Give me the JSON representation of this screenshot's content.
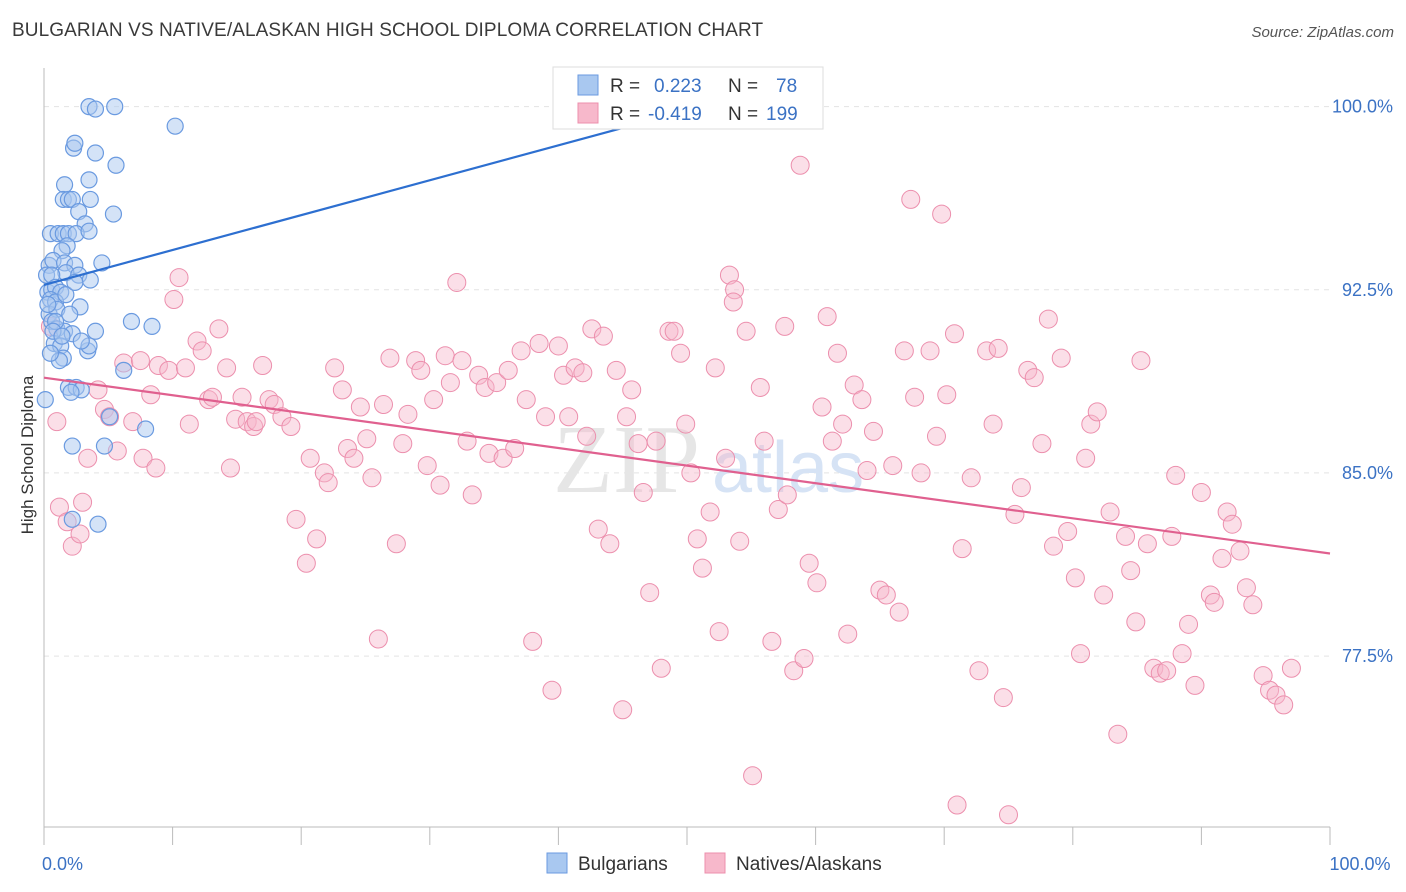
{
  "title": "BULGARIAN VS NATIVE/ALASKAN HIGH SCHOOL DIPLOMA CORRELATION CHART",
  "source": "Source: ZipAtlas.com",
  "watermark": {
    "zip": "ZIP",
    "atlas": "atlas"
  },
  "colors": {
    "blue_fill": "#a9c8f0",
    "blue_stroke": "#6a9ae0",
    "blue_line": "#2d6fd0",
    "pink_fill": "#f7b8cb",
    "pink_stroke": "#ec8fad",
    "pink_line": "#e0608f",
    "axis_text": "#3b72c4",
    "grid": "#e3e3e3"
  },
  "legend": {
    "rows": [
      {
        "r_label": "R =",
        "r_value": "0.223",
        "n_label": "N =",
        "n_value": "78"
      },
      {
        "r_label": "R =",
        "r_value": "-0.419",
        "n_label": "N =",
        "n_value": "199"
      }
    ]
  },
  "bottom_legend": [
    "Bulgarians",
    "Natives/Alaskans"
  ],
  "chart_data": {
    "type": "scatter",
    "title": "BULGARIAN VS NATIVE/ALASKAN HIGH SCHOOL DIPLOMA CORRELATION CHART",
    "xlabel": "",
    "ylabel": "High School Diploma",
    "xlim": [
      0,
      100
    ],
    "ylim": [
      70.5,
      101.5
    ],
    "x_ticks": [
      0,
      10,
      20,
      30,
      40,
      50,
      60,
      70,
      80,
      90,
      100
    ],
    "x_tick_labels_shown": {
      "0": "0.0%",
      "100": "100.0%"
    },
    "y_ticks": [
      77.5,
      85.0,
      92.5,
      100.0
    ],
    "y_tick_labels": [
      "77.5%",
      "85.0%",
      "92.5%",
      "100.0%"
    ],
    "grid": "horizontal dashed",
    "legend_position": "top-center",
    "series": [
      {
        "name": "Bulgarians",
        "color": "#a9c8f0",
        "r": 0.223,
        "n": 78,
        "trend": {
          "x": [
            0,
            59.5
          ],
          "y": [
            92.7,
            101.2
          ]
        },
        "points": [
          [
            3.5,
            100.0
          ],
          [
            5.5,
            100.0
          ],
          [
            4.0,
            99.9
          ],
          [
            10.2,
            99.2
          ],
          [
            2.3,
            98.3
          ],
          [
            2.4,
            98.5
          ],
          [
            4.0,
            98.1
          ],
          [
            5.6,
            97.6
          ],
          [
            3.5,
            97.0
          ],
          [
            1.6,
            96.8
          ],
          [
            1.5,
            96.2
          ],
          [
            1.9,
            96.2
          ],
          [
            2.2,
            96.2
          ],
          [
            3.6,
            96.2
          ],
          [
            2.7,
            95.7
          ],
          [
            5.4,
            95.6
          ],
          [
            3.2,
            95.2
          ],
          [
            0.5,
            94.8
          ],
          [
            1.1,
            94.8
          ],
          [
            1.5,
            94.8
          ],
          [
            1.9,
            94.8
          ],
          [
            2.5,
            94.8
          ],
          [
            3.5,
            94.9
          ],
          [
            1.8,
            94.3
          ],
          [
            1.4,
            94.1
          ],
          [
            0.4,
            93.5
          ],
          [
            0.7,
            93.7
          ],
          [
            1.6,
            93.6
          ],
          [
            2.4,
            93.5
          ],
          [
            4.5,
            93.6
          ],
          [
            1.7,
            93.2
          ],
          [
            0.2,
            93.1
          ],
          [
            0.6,
            93.1
          ],
          [
            2.7,
            93.1
          ],
          [
            3.6,
            92.9
          ],
          [
            0.3,
            92.4
          ],
          [
            0.6,
            92.5
          ],
          [
            0.9,
            92.6
          ],
          [
            1.3,
            92.4
          ],
          [
            0.5,
            92.1
          ],
          [
            0.9,
            92.0
          ],
          [
            0.4,
            91.5
          ],
          [
            1.0,
            91.7
          ],
          [
            2.8,
            91.8
          ],
          [
            2.0,
            91.5
          ],
          [
            0.6,
            91.2
          ],
          [
            1.0,
            90.9
          ],
          [
            6.8,
            91.2
          ],
          [
            8.4,
            91.0
          ],
          [
            1.6,
            90.8
          ],
          [
            2.2,
            90.7
          ],
          [
            4.0,
            90.8
          ],
          [
            0.8,
            90.3
          ],
          [
            1.3,
            90.2
          ],
          [
            3.4,
            90.0
          ],
          [
            3.5,
            90.2
          ],
          [
            1.5,
            89.7
          ],
          [
            6.2,
            89.2
          ],
          [
            1.9,
            88.5
          ],
          [
            2.5,
            88.5
          ],
          [
            2.9,
            88.4
          ],
          [
            0.1,
            88.0
          ],
          [
            5.1,
            87.3
          ],
          [
            7.9,
            86.8
          ],
          [
            2.2,
            86.1
          ],
          [
            4.7,
            86.1
          ],
          [
            2.2,
            83.1
          ],
          [
            4.2,
            82.9
          ],
          [
            0.9,
            91.2
          ],
          [
            1.7,
            92.3
          ],
          [
            2.4,
            92.8
          ],
          [
            0.3,
            91.9
          ],
          [
            1.2,
            89.6
          ],
          [
            0.7,
            90.8
          ],
          [
            2.1,
            88.3
          ],
          [
            0.5,
            89.9
          ],
          [
            1.4,
            90.6
          ],
          [
            2.9,
            90.4
          ]
        ]
      },
      {
        "name": "Natives/Alaskans",
        "color": "#f7b8cb",
        "r": -0.419,
        "n": 199,
        "trend": {
          "x": [
            0,
            100
          ],
          "y": [
            88.9,
            81.7
          ]
        },
        "points": [
          [
            0.5,
            91.0
          ],
          [
            1.0,
            87.1
          ],
          [
            1.2,
            83.6
          ],
          [
            1.8,
            83.0
          ],
          [
            2.2,
            82.0
          ],
          [
            2.8,
            82.5
          ],
          [
            3.0,
            83.8
          ],
          [
            3.4,
            85.6
          ],
          [
            4.2,
            88.4
          ],
          [
            4.7,
            87.6
          ],
          [
            5.1,
            87.3
          ],
          [
            5.7,
            85.9
          ],
          [
            6.2,
            89.5
          ],
          [
            6.9,
            87.1
          ],
          [
            7.5,
            89.6
          ],
          [
            7.7,
            85.6
          ],
          [
            8.3,
            88.2
          ],
          [
            8.7,
            85.2
          ],
          [
            8.9,
            89.4
          ],
          [
            9.7,
            89.2
          ],
          [
            10.1,
            92.1
          ],
          [
            10.5,
            93.0
          ],
          [
            11.0,
            89.3
          ],
          [
            11.3,
            87.0
          ],
          [
            11.9,
            90.4
          ],
          [
            12.3,
            90.0
          ],
          [
            12.8,
            88.0
          ],
          [
            13.1,
            88.1
          ],
          [
            13.6,
            90.9
          ],
          [
            14.2,
            89.3
          ],
          [
            14.5,
            85.2
          ],
          [
            14.9,
            87.2
          ],
          [
            15.4,
            88.1
          ],
          [
            15.8,
            87.1
          ],
          [
            16.3,
            86.9
          ],
          [
            16.5,
            87.1
          ],
          [
            17.0,
            89.4
          ],
          [
            17.5,
            88.0
          ],
          [
            17.9,
            87.8
          ],
          [
            18.5,
            87.3
          ],
          [
            19.2,
            86.9
          ],
          [
            19.6,
            83.1
          ],
          [
            20.4,
            81.3
          ],
          [
            20.7,
            85.6
          ],
          [
            21.2,
            82.3
          ],
          [
            21.8,
            85.0
          ],
          [
            22.1,
            84.6
          ],
          [
            22.6,
            89.3
          ],
          [
            23.2,
            88.4
          ],
          [
            23.6,
            86.0
          ],
          [
            24.1,
            85.6
          ],
          [
            24.6,
            87.7
          ],
          [
            25.1,
            86.4
          ],
          [
            25.5,
            84.8
          ],
          [
            26.0,
            78.2
          ],
          [
            26.4,
            87.8
          ],
          [
            26.9,
            89.7
          ],
          [
            27.4,
            82.1
          ],
          [
            27.9,
            86.2
          ],
          [
            28.3,
            87.4
          ],
          [
            28.9,
            89.6
          ],
          [
            29.3,
            89.2
          ],
          [
            29.8,
            85.3
          ],
          [
            30.3,
            88.0
          ],
          [
            30.8,
            84.5
          ],
          [
            31.2,
            89.8
          ],
          [
            31.6,
            88.7
          ],
          [
            32.1,
            92.8
          ],
          [
            32.5,
            89.6
          ],
          [
            32.9,
            86.3
          ],
          [
            33.3,
            84.1
          ],
          [
            33.8,
            89.0
          ],
          [
            34.3,
            88.5
          ],
          [
            34.6,
            85.8
          ],
          [
            35.2,
            88.7
          ],
          [
            35.7,
            85.6
          ],
          [
            36.1,
            89.2
          ],
          [
            36.6,
            86.0
          ],
          [
            37.1,
            90.0
          ],
          [
            37.5,
            88.0
          ],
          [
            38.0,
            78.1
          ],
          [
            38.5,
            90.3
          ],
          [
            39.0,
            87.3
          ],
          [
            39.5,
            76.1
          ],
          [
            40.0,
            90.2
          ],
          [
            40.4,
            89.0
          ],
          [
            40.8,
            87.3
          ],
          [
            41.3,
            89.3
          ],
          [
            41.9,
            89.1
          ],
          [
            42.2,
            86.5
          ],
          [
            42.6,
            90.9
          ],
          [
            43.1,
            82.7
          ],
          [
            43.5,
            90.6
          ],
          [
            44.0,
            82.1
          ],
          [
            44.5,
            89.2
          ],
          [
            45.0,
            75.3
          ],
          [
            45.3,
            87.3
          ],
          [
            45.7,
            88.4
          ],
          [
            46.2,
            86.2
          ],
          [
            46.6,
            84.2
          ],
          [
            47.1,
            80.1
          ],
          [
            47.6,
            86.3
          ],
          [
            48.0,
            77.0
          ],
          [
            48.6,
            90.8
          ],
          [
            49.0,
            90.8
          ],
          [
            49.5,
            89.9
          ],
          [
            49.9,
            87.0
          ],
          [
            50.3,
            85.0
          ],
          [
            50.8,
            82.3
          ],
          [
            51.2,
            81.1
          ],
          [
            51.8,
            83.4
          ],
          [
            52.2,
            89.3
          ],
          [
            52.5,
            78.5
          ],
          [
            53.0,
            85.6
          ],
          [
            53.3,
            93.1
          ],
          [
            53.7,
            92.5
          ],
          [
            54.1,
            82.2
          ],
          [
            54.6,
            90.8
          ],
          [
            55.1,
            72.6
          ],
          [
            55.7,
            88.5
          ],
          [
            56.0,
            86.3
          ],
          [
            56.6,
            78.1
          ],
          [
            57.1,
            83.5
          ],
          [
            57.6,
            91.0
          ],
          [
            57.8,
            84.1
          ],
          [
            58.3,
            76.9
          ],
          [
            58.8,
            97.6
          ],
          [
            59.1,
            77.4
          ],
          [
            59.5,
            81.3
          ],
          [
            60.1,
            80.5
          ],
          [
            60.5,
            87.7
          ],
          [
            60.9,
            91.4
          ],
          [
            61.3,
            86.3
          ],
          [
            61.7,
            89.9
          ],
          [
            62.1,
            87.0
          ],
          [
            62.5,
            78.4
          ],
          [
            63.0,
            88.6
          ],
          [
            63.6,
            88.0
          ],
          [
            64.0,
            85.1
          ],
          [
            64.5,
            86.7
          ],
          [
            65.0,
            80.2
          ],
          [
            65.5,
            80.0
          ],
          [
            66.0,
            85.3
          ],
          [
            66.5,
            79.3
          ],
          [
            66.9,
            90.0
          ],
          [
            67.4,
            96.2
          ],
          [
            67.7,
            88.1
          ],
          [
            68.2,
            85.0
          ],
          [
            68.9,
            90.0
          ],
          [
            69.4,
            86.5
          ],
          [
            69.8,
            95.6
          ],
          [
            70.2,
            88.2
          ],
          [
            70.8,
            90.7
          ],
          [
            71.4,
            81.9
          ],
          [
            72.1,
            84.8
          ],
          [
            72.7,
            76.9
          ],
          [
            73.3,
            90.0
          ],
          [
            73.8,
            87.0
          ],
          [
            74.2,
            90.1
          ],
          [
            74.6,
            75.8
          ],
          [
            75.0,
            71.0
          ],
          [
            75.5,
            83.3
          ],
          [
            76.0,
            84.4
          ],
          [
            76.5,
            89.2
          ],
          [
            77.0,
            88.9
          ],
          [
            77.6,
            86.2
          ],
          [
            78.1,
            91.3
          ],
          [
            78.5,
            82.0
          ],
          [
            79.1,
            89.7
          ],
          [
            79.6,
            82.6
          ],
          [
            80.2,
            80.7
          ],
          [
            80.6,
            77.6
          ],
          [
            81.0,
            85.6
          ],
          [
            81.4,
            87.0
          ],
          [
            81.9,
            87.5
          ],
          [
            82.4,
            80.0
          ],
          [
            82.9,
            83.4
          ],
          [
            83.5,
            74.3
          ],
          [
            84.1,
            82.4
          ],
          [
            84.5,
            81.0
          ],
          [
            84.9,
            78.9
          ],
          [
            85.3,
            89.6
          ],
          [
            85.8,
            82.1
          ],
          [
            86.3,
            77.0
          ],
          [
            86.8,
            76.8
          ],
          [
            87.3,
            76.9
          ],
          [
            87.7,
            82.4
          ],
          [
            88.0,
            84.9
          ],
          [
            88.5,
            77.6
          ],
          [
            89.0,
            78.8
          ],
          [
            89.5,
            76.3
          ],
          [
            90.0,
            84.2
          ],
          [
            90.7,
            80.0
          ],
          [
            91.0,
            79.7
          ],
          [
            91.6,
            81.5
          ],
          [
            92.0,
            83.4
          ],
          [
            92.4,
            82.9
          ],
          [
            93.0,
            81.8
          ],
          [
            93.5,
            80.3
          ],
          [
            94.0,
            79.6
          ],
          [
            94.8,
            76.7
          ],
          [
            95.3,
            76.1
          ],
          [
            95.8,
            75.9
          ],
          [
            96.4,
            75.5
          ],
          [
            97.0,
            77.0
          ],
          [
            71.0,
            71.4
          ],
          [
            53.6,
            92.0
          ]
        ]
      }
    ]
  }
}
